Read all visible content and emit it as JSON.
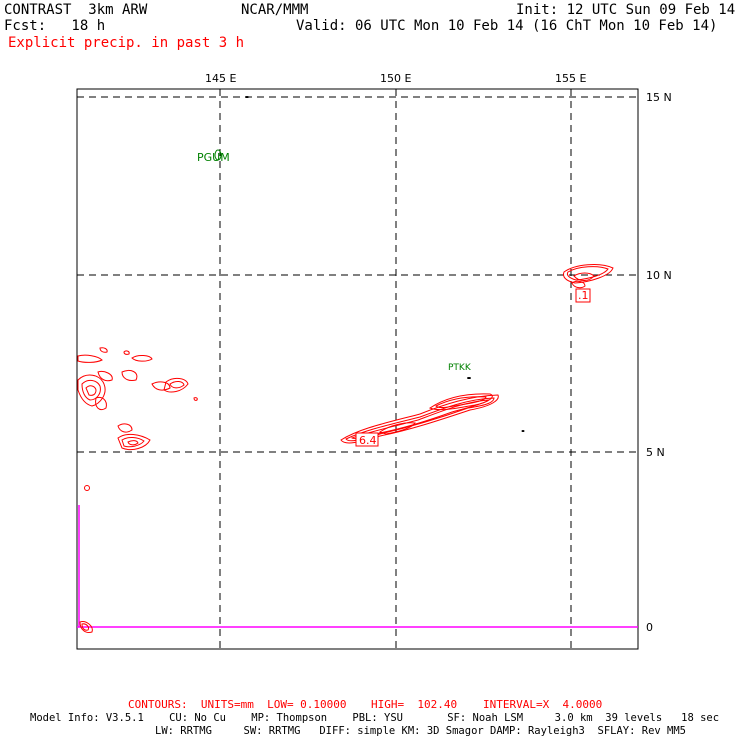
{
  "header": {
    "title": "CONTRAST  3km ARW",
    "org": "NCAR/MMM",
    "init": "Init: 12 UTC Sun 09 Feb 14",
    "fcst": "Fcst:   18 h",
    "valid": "Valid: 06 UTC Mon 10 Feb 14 (16 ChT Mon 10 Feb 14)",
    "field": "Explicit precip. in past 3 h"
  },
  "map": {
    "lon_labels": [
      "145 E",
      "150 E",
      "155 E"
    ],
    "lat_labels": [
      "15 N",
      "10 N",
      "5 N",
      "0"
    ],
    "stations": [
      "PGUM",
      "PTKK"
    ],
    "value_labels": [
      "6.4",
      ".1"
    ]
  },
  "contour_info": {
    "contours": "CONTOURS:  UNITS=mm  LOW= 0.10000",
    "high": "HIGH=  102.40",
    "interval": "INTERVAL=X  4.0000"
  },
  "model_info": {
    "line1": "Model Info: V3.5.1    CU: No Cu    MP: Thompson    PBL: YSU       SF: Noah LSM     3.0 km  39 levels   18 sec",
    "line2": "LW: RRTMG     SW: RRTMG   DIFF: simple KM: 3D Smagor DAMP: Rayleigh3  SFLAY: Rev MM5"
  },
  "colors": {
    "contour": "#ff0000",
    "station": "#008000",
    "boundary": "#ff00ff"
  }
}
